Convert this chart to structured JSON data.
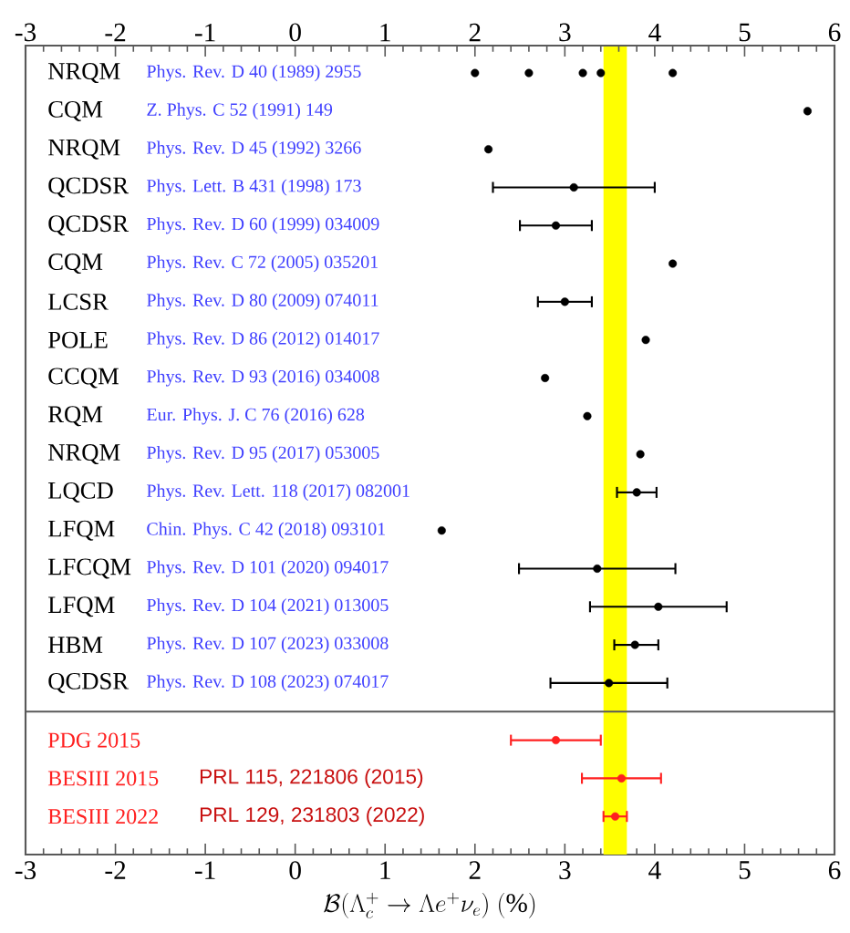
{
  "chart_data": {
    "type": "scatter",
    "orientation": "horizontal",
    "xlabel": "\\mathcal{B}(\\Lambda_c^+ \\rightarrow \\Lambda e^+ \\nu_e)\\ (\\%)",
    "categories": [
      "NRQM",
      "CQM",
      "NRQM",
      "QCDSR",
      "QCDSR",
      "CQM",
      "LCSR",
      "POLE",
      "CCQM",
      "RQM",
      "NRQM",
      "LQCD",
      "LFQM",
      "LFCQM",
      "LFQM",
      "HBM",
      "QCDSR",
      "PDG 2015",
      "BESIII 2015",
      "BESIII 2022"
    ],
    "xlim": [
      -3,
      6
    ],
    "xticks": [
      -3,
      -2,
      -1,
      0,
      1,
      2,
      3,
      4,
      5,
      6
    ],
    "x2lim": [
      -3,
      6
    ],
    "x2ticks": [
      -3,
      -2,
      -1,
      0,
      1,
      2,
      3,
      4,
      5,
      6
    ],
    "series": [
      {
        "color": "#000000",
        "values": [
          2.0,
          5.7,
          2.15,
          3.1,
          2.9,
          4.2,
          3.0,
          3.9,
          2.78,
          3.25,
          3.84,
          3.8,
          1.63,
          3.36,
          4.04,
          3.78,
          3.49,
          null,
          null,
          null
        ],
        "errors": [
          null,
          null,
          null,
          [
            2.2,
            4.0
          ],
          [
            2.5,
            3.3
          ],
          null,
          [
            2.7,
            3.3
          ],
          null,
          null,
          null,
          null,
          [
            3.58,
            4.02
          ],
          null,
          [
            2.49,
            4.23
          ],
          [
            3.28,
            4.8
          ],
          [
            3.55,
            4.04
          ],
          [
            2.84,
            4.14
          ],
          null,
          null,
          null
        ]
      },
      {
        "color": "#000000",
        "values": [
          2.6,
          null,
          null,
          null,
          null,
          null,
          null,
          null,
          null,
          null,
          null,
          null,
          null,
          null,
          null,
          null,
          null,
          null,
          null,
          null
        ]
      },
      {
        "color": "#000000",
        "values": [
          3.2,
          null,
          null,
          null,
          null,
          null,
          null,
          null,
          null,
          null,
          null,
          null,
          null,
          null,
          null,
          null,
          null,
          null,
          null,
          null
        ]
      },
      {
        "color": "#000000",
        "values": [
          3.4,
          null,
          null,
          null,
          null,
          null,
          null,
          null,
          null,
          null,
          null,
          null,
          null,
          null,
          null,
          null,
          null,
          null,
          null,
          null
        ]
      },
      {
        "color": "#000000",
        "values": [
          4.2,
          null,
          null,
          null,
          null,
          null,
          null,
          null,
          null,
          null,
          null,
          null,
          null,
          null,
          null,
          null,
          null,
          null,
          null,
          null
        ]
      },
      {
        "color": "#ff2020",
        "values": [
          null,
          null,
          null,
          null,
          null,
          null,
          null,
          null,
          null,
          null,
          null,
          null,
          null,
          null,
          null,
          null,
          null,
          2.9,
          3.63,
          3.56
        ],
        "errors": [
          null,
          null,
          null,
          null,
          null,
          null,
          null,
          null,
          null,
          null,
          null,
          null,
          null,
          null,
          null,
          null,
          null,
          [
            2.4,
            3.4
          ],
          [
            3.19,
            4.07
          ],
          [
            3.43,
            3.69
          ]
        ]
      }
    ],
    "bands": [
      {
        "axis": "x",
        "from": 3.43,
        "to": 3.69,
        "color": "#ffff00"
      }
    ],
    "annotations": [
      "Phys. Rev. D 40 (1989) 2955",
      "Z. Phys. C 52 (1991) 149",
      "Phys. Rev. D 45 (1992) 3266",
      "Phys. Lett. B 431 (1998) 173",
      "Phys. Rev. D 60 (1999) 034009",
      "Phys. Rev. C 72 (2005) 035201",
      "Phys. Rev. D 80 (2009) 074011",
      "Phys. Rev. D 86 (2012) 014017",
      "Phys. Rev. D 93 (2016) 034008",
      "Eur. Phys. J. C 76 (2016) 628",
      "Phys. Rev. D 95 (2017) 053005",
      "Phys. Rev. Lett. 118 (2017) 082001",
      "Chin. Phys. C 42 (2018) 093101",
      "Phys. Rev. D 101 (2020) 094017",
      "Phys. Rev. D 104 (2021) 013005",
      "Phys. Rev. D 107 (2023) 033008",
      "Phys. Rev. D 108 (2023) 074017",
      "PRL 115, 221806 (2015)",
      "PRL 129, 231803 (2022)"
    ]
  }
}
